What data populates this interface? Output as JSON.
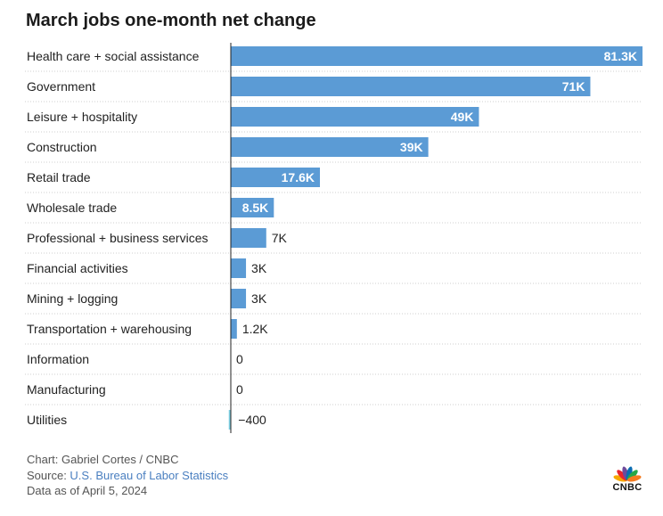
{
  "chart_data": {
    "type": "bar",
    "orientation": "horizontal",
    "title": "March jobs one-month net change",
    "categories": [
      "Health care + social assistance",
      "Government",
      "Leisure + hospitality",
      "Construction",
      "Retail trade",
      "Wholesale trade",
      "Professional + business services",
      "Financial activities",
      "Mining + logging",
      "Transportation + warehousing",
      "Information",
      "Manufacturing",
      "Utilities"
    ],
    "values": [
      81300,
      71000,
      49000,
      39000,
      17600,
      8500,
      7000,
      3000,
      3000,
      1200,
      0,
      0,
      -400
    ],
    "data_labels": [
      "81.3K",
      "71K",
      "49K",
      "39K",
      "17.6K",
      "8.5K",
      "7K",
      "3K",
      "3K",
      "1.2K",
      "0",
      "0",
      "−400"
    ],
    "xlim": [
      -400,
      81300
    ],
    "grid": false,
    "bar_color": "#5b9bd5",
    "negative_color": "#7fd0e3"
  },
  "footer": {
    "credit": "Chart: Gabriel Cortes / CNBC",
    "source_prefix": "Source: ",
    "source_link": "U.S. Bureau of Labor Statistics",
    "date": "Data as of April 5, 2024"
  },
  "logo": {
    "text": "CNBC",
    "icon": "peacock-icon"
  }
}
